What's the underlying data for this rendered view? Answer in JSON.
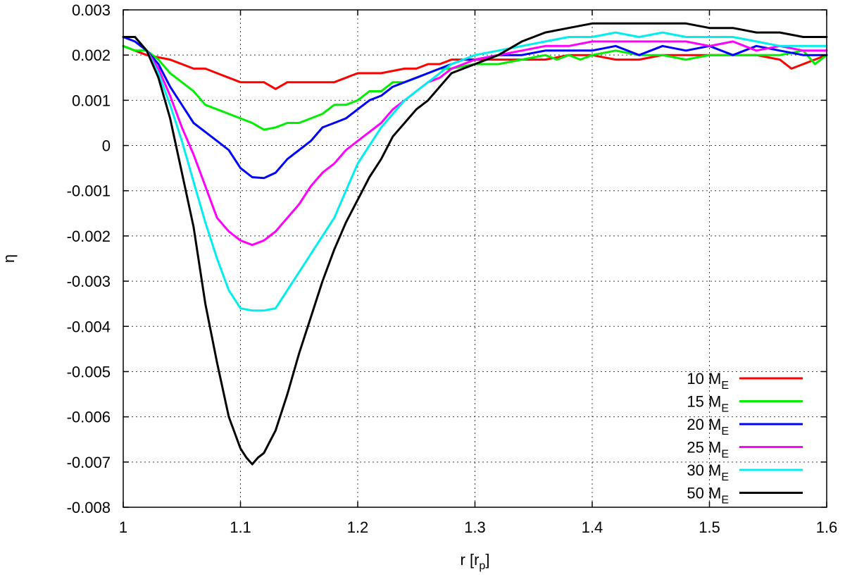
{
  "chart_data": {
    "type": "line",
    "title": "",
    "xlabel": "r [r",
    "xlabel_sub": "p",
    "xlabel_close": "]",
    "ylabel": "η",
    "xlim": [
      1.0,
      1.6
    ],
    "ylim": [
      -0.008,
      0.003
    ],
    "xticks": [
      1,
      1.1,
      1.2,
      1.3,
      1.4,
      1.5,
      1.6
    ],
    "xtick_labels": [
      "1",
      "1.1",
      "1.2",
      "1.3",
      "1.4",
      "1.5",
      "1.6"
    ],
    "yticks": [
      -0.008,
      -0.007,
      -0.006,
      -0.005,
      -0.004,
      -0.003,
      -0.002,
      -0.001,
      0,
      0.001,
      0.002,
      0.003
    ],
    "ytick_labels": [
      "-0.008",
      "-0.007",
      "-0.006",
      "-0.005",
      "-0.004",
      "-0.003",
      "-0.002",
      "-0.001",
      "0",
      "0.001",
      "0.002",
      "0.003"
    ],
    "grid": true,
    "legend_position": "bottom-right",
    "series": [
      {
        "name": "10 M",
        "sub": "E",
        "color": "#ff0000",
        "x": [
          1.0,
          1.01,
          1.02,
          1.03,
          1.04,
          1.05,
          1.06,
          1.07,
          1.08,
          1.09,
          1.1,
          1.11,
          1.12,
          1.13,
          1.14,
          1.15,
          1.16,
          1.17,
          1.18,
          1.19,
          1.2,
          1.21,
          1.22,
          1.23,
          1.24,
          1.25,
          1.26,
          1.27,
          1.28,
          1.29,
          1.3,
          1.32,
          1.34,
          1.36,
          1.38,
          1.4,
          1.42,
          1.44,
          1.46,
          1.48,
          1.5,
          1.52,
          1.54,
          1.56,
          1.57,
          1.58,
          1.59,
          1.6
        ],
        "y": [
          0.0022,
          0.0021,
          0.002,
          0.00195,
          0.0019,
          0.0018,
          0.0017,
          0.0017,
          0.0016,
          0.0015,
          0.0014,
          0.0014,
          0.0014,
          0.00125,
          0.0014,
          0.0014,
          0.0014,
          0.0014,
          0.0014,
          0.0015,
          0.0016,
          0.0016,
          0.0016,
          0.00165,
          0.0017,
          0.0017,
          0.0018,
          0.0018,
          0.0019,
          0.0019,
          0.0019,
          0.0019,
          0.0019,
          0.0019,
          0.002,
          0.002,
          0.0019,
          0.0019,
          0.002,
          0.002,
          0.002,
          0.002,
          0.002,
          0.0019,
          0.0017,
          0.0018,
          0.0019,
          0.002
        ]
      },
      {
        "name": "15 M",
        "sub": "E",
        "color": "#00ee00",
        "x": [
          1.0,
          1.01,
          1.02,
          1.03,
          1.04,
          1.05,
          1.06,
          1.07,
          1.08,
          1.09,
          1.1,
          1.11,
          1.12,
          1.13,
          1.14,
          1.15,
          1.16,
          1.17,
          1.18,
          1.19,
          1.2,
          1.21,
          1.22,
          1.23,
          1.24,
          1.25,
          1.26,
          1.27,
          1.28,
          1.3,
          1.32,
          1.34,
          1.36,
          1.37,
          1.38,
          1.39,
          1.4,
          1.42,
          1.44,
          1.46,
          1.48,
          1.5,
          1.52,
          1.54,
          1.56,
          1.58,
          1.59,
          1.6
        ],
        "y": [
          0.0022,
          0.0021,
          0.0021,
          0.0019,
          0.0016,
          0.0014,
          0.0012,
          0.0009,
          0.0008,
          0.0007,
          0.0006,
          0.0005,
          0.00035,
          0.0004,
          0.0005,
          0.0005,
          0.0006,
          0.0007,
          0.0009,
          0.0009,
          0.001,
          0.0012,
          0.0012,
          0.0014,
          0.0014,
          0.0015,
          0.0016,
          0.0017,
          0.0017,
          0.0018,
          0.0018,
          0.0019,
          0.002,
          0.0019,
          0.002,
          0.0019,
          0.002,
          0.0021,
          0.002,
          0.002,
          0.0019,
          0.002,
          0.002,
          0.002,
          0.002,
          0.0021,
          0.0018,
          0.002
        ]
      },
      {
        "name": "20 M",
        "sub": "E",
        "color": "#0000ff",
        "x": [
          1.0,
          1.01,
          1.02,
          1.03,
          1.04,
          1.05,
          1.06,
          1.07,
          1.08,
          1.09,
          1.1,
          1.11,
          1.12,
          1.13,
          1.14,
          1.15,
          1.16,
          1.17,
          1.18,
          1.19,
          1.2,
          1.21,
          1.22,
          1.23,
          1.24,
          1.25,
          1.26,
          1.27,
          1.28,
          1.29,
          1.3,
          1.32,
          1.34,
          1.36,
          1.38,
          1.4,
          1.42,
          1.44,
          1.46,
          1.48,
          1.5,
          1.52,
          1.54,
          1.56,
          1.58,
          1.6
        ],
        "y": [
          0.0024,
          0.0023,
          0.0021,
          0.0018,
          0.0013,
          0.0009,
          0.0005,
          0.0003,
          0.0001,
          -0.0001,
          -0.0005,
          -0.0007,
          -0.00072,
          -0.0006,
          -0.0003,
          -0.0001,
          0.0001,
          0.0004,
          0.0005,
          0.0006,
          0.0008,
          0.001,
          0.0011,
          0.0013,
          0.0014,
          0.0015,
          0.0016,
          0.0017,
          0.0018,
          0.0019,
          0.0019,
          0.002,
          0.002,
          0.0021,
          0.0021,
          0.0021,
          0.0022,
          0.002,
          0.0022,
          0.0021,
          0.0022,
          0.002,
          0.0022,
          0.0021,
          0.002,
          0.002
        ]
      },
      {
        "name": "25 M",
        "sub": "E",
        "color": "#ff00ff",
        "x": [
          1.0,
          1.01,
          1.02,
          1.03,
          1.04,
          1.05,
          1.06,
          1.07,
          1.08,
          1.09,
          1.1,
          1.11,
          1.12,
          1.13,
          1.14,
          1.15,
          1.16,
          1.17,
          1.18,
          1.19,
          1.2,
          1.21,
          1.22,
          1.23,
          1.24,
          1.25,
          1.26,
          1.27,
          1.28,
          1.29,
          1.3,
          1.32,
          1.34,
          1.36,
          1.38,
          1.4,
          1.42,
          1.44,
          1.46,
          1.48,
          1.5,
          1.52,
          1.54,
          1.56,
          1.58,
          1.6
        ],
        "y": [
          0.0024,
          0.0024,
          0.0021,
          0.0017,
          0.0011,
          0.0004,
          -0.0002,
          -0.0009,
          -0.0016,
          -0.0019,
          -0.0021,
          -0.0022,
          -0.0021,
          -0.0019,
          -0.0016,
          -0.0013,
          -0.0009,
          -0.0006,
          -0.0004,
          -0.0001,
          0.0001,
          0.0003,
          0.0005,
          0.0008,
          0.001,
          0.0012,
          0.0014,
          0.0015,
          0.0017,
          0.0018,
          0.0019,
          0.002,
          0.0021,
          0.0022,
          0.0022,
          0.0023,
          0.0023,
          0.0023,
          0.0023,
          0.0023,
          0.0022,
          0.0023,
          0.0021,
          0.0022,
          0.0021,
          0.0021
        ]
      },
      {
        "name": "30 M",
        "sub": "E",
        "color": "#00eeee",
        "x": [
          1.0,
          1.01,
          1.02,
          1.03,
          1.04,
          1.05,
          1.06,
          1.07,
          1.08,
          1.09,
          1.1,
          1.11,
          1.12,
          1.13,
          1.14,
          1.15,
          1.16,
          1.17,
          1.18,
          1.19,
          1.2,
          1.21,
          1.22,
          1.23,
          1.24,
          1.25,
          1.26,
          1.27,
          1.28,
          1.29,
          1.3,
          1.32,
          1.34,
          1.36,
          1.38,
          1.4,
          1.42,
          1.44,
          1.46,
          1.48,
          1.5,
          1.52,
          1.54,
          1.56,
          1.58,
          1.6
        ],
        "y": [
          0.0024,
          0.0024,
          0.0021,
          0.0016,
          0.0009,
          0.0001,
          -0.0008,
          -0.0017,
          -0.0025,
          -0.0032,
          -0.0036,
          -0.00365,
          -0.00365,
          -0.0036,
          -0.0032,
          -0.0028,
          -0.0024,
          -0.002,
          -0.0016,
          -0.001,
          -0.0004,
          0.0,
          0.0004,
          0.0007,
          0.001,
          0.0012,
          0.0014,
          0.0016,
          0.0018,
          0.0019,
          0.002,
          0.0021,
          0.0022,
          0.0023,
          0.0024,
          0.0024,
          0.0025,
          0.0024,
          0.0025,
          0.0024,
          0.0024,
          0.0024,
          0.0023,
          0.0022,
          0.0022,
          0.0022
        ]
      },
      {
        "name": "50 M",
        "sub": "E",
        "color": "#000000",
        "x": [
          1.0,
          1.01,
          1.02,
          1.03,
          1.04,
          1.05,
          1.06,
          1.07,
          1.08,
          1.09,
          1.1,
          1.105,
          1.11,
          1.115,
          1.12,
          1.13,
          1.14,
          1.15,
          1.16,
          1.17,
          1.18,
          1.19,
          1.2,
          1.21,
          1.22,
          1.23,
          1.24,
          1.25,
          1.26,
          1.27,
          1.28,
          1.29,
          1.3,
          1.32,
          1.34,
          1.36,
          1.38,
          1.4,
          1.42,
          1.44,
          1.46,
          1.48,
          1.5,
          1.52,
          1.54,
          1.56,
          1.58,
          1.6
        ],
        "y": [
          0.0024,
          0.0024,
          0.0021,
          0.0015,
          0.0006,
          -0.0006,
          -0.0018,
          -0.0035,
          -0.0048,
          -0.006,
          -0.0067,
          -0.0069,
          -0.00705,
          -0.0069,
          -0.0068,
          -0.0063,
          -0.0055,
          -0.0046,
          -0.0038,
          -0.003,
          -0.0023,
          -0.0017,
          -0.0012,
          -0.0007,
          -0.0003,
          0.0002,
          0.0005,
          0.0008,
          0.001,
          0.0013,
          0.0016,
          0.0017,
          0.0018,
          0.002,
          0.0023,
          0.0025,
          0.0026,
          0.0027,
          0.0027,
          0.0027,
          0.0027,
          0.0027,
          0.0026,
          0.0026,
          0.0025,
          0.0025,
          0.0024,
          0.0024
        ]
      }
    ]
  }
}
